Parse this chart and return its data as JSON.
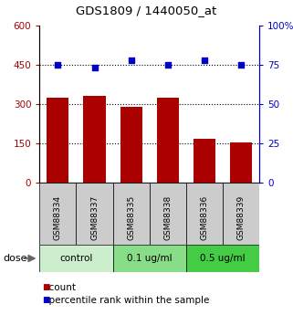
{
  "title": "GDS1809 / 1440050_at",
  "samples": [
    "GSM88334",
    "GSM88337",
    "GSM88335",
    "GSM88338",
    "GSM88336",
    "GSM88339"
  ],
  "bar_values": [
    325,
    330,
    290,
    325,
    168,
    153
  ],
  "dot_values": [
    75,
    73,
    78,
    75,
    78,
    75
  ],
  "groups": [
    {
      "label": "control",
      "indices": [
        0,
        1
      ],
      "color": "#cceecc"
    },
    {
      "label": "0.1 ug/ml",
      "indices": [
        2,
        3
      ],
      "color": "#88dd88"
    },
    {
      "label": "0.5 ug/ml",
      "indices": [
        4,
        5
      ],
      "color": "#44cc44"
    }
  ],
  "bar_color": "#aa0000",
  "dot_color": "#0000cc",
  "left_ylim": [
    0,
    600
  ],
  "right_ylim": [
    0,
    100
  ],
  "left_yticks": [
    0,
    150,
    300,
    450,
    600
  ],
  "left_yticklabels": [
    "0",
    "150",
    "300",
    "450",
    "600"
  ],
  "right_yticks": [
    0,
    25,
    50,
    75,
    100
  ],
  "right_yticklabels": [
    "0",
    "25",
    "50",
    "75",
    "100%"
  ],
  "grid_values": [
    150,
    300,
    450
  ],
  "dose_label": "dose",
  "legend_count_label": "count",
  "legend_pct_label": "percentile rank within the sample",
  "bar_width": 0.6,
  "xlabel_bg_color": "#cccccc",
  "figsize": [
    3.21,
    3.45
  ],
  "dpi": 100
}
